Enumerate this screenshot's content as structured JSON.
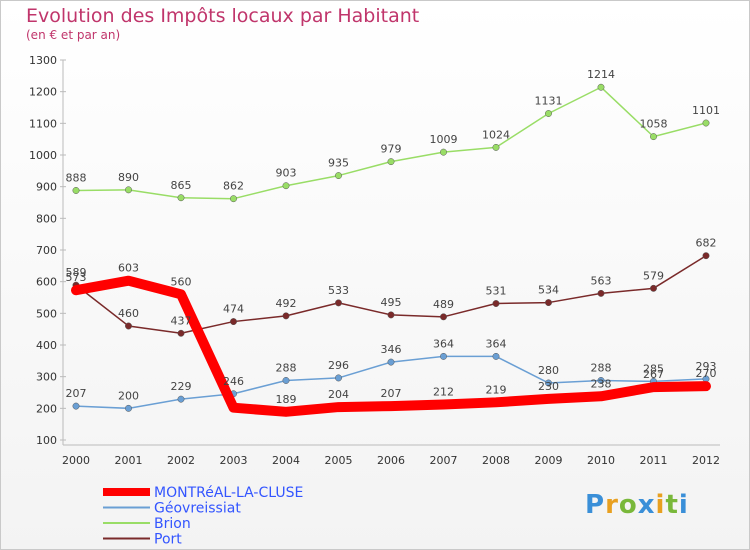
{
  "chart_data": {
    "type": "line",
    "title": "Evolution des Impôts locaux par Habitant",
    "subtitle": "(en € et par an)",
    "xlabel": "",
    "ylabel": "",
    "x": [
      "2000",
      "2001",
      "2002",
      "2003",
      "2004",
      "2005",
      "2006",
      "2007",
      "2008",
      "2009",
      "2010",
      "2011",
      "2012"
    ],
    "ylim": [
      100,
      1300
    ],
    "yticks": [
      100,
      200,
      300,
      400,
      500,
      600,
      700,
      800,
      900,
      1000,
      1100,
      1200,
      1300
    ],
    "grid": false,
    "legend_position": "bottom-left",
    "series": [
      {
        "name": "MONTRéAL-LA-CLUSE",
        "color": "#ff0000",
        "highlight": true,
        "values": [
          573,
          603,
          560,
          202,
          189,
          204,
          207,
          212,
          219,
          230,
          238,
          267,
          270
        ],
        "labels": [
          "573",
          "603",
          "560",
          "",
          "189",
          "204",
          "207",
          "212",
          "219",
          "230",
          "238",
          "267",
          "270"
        ]
      },
      {
        "name": "Géovreissiat",
        "color": "#6a9fd4",
        "values": [
          207,
          200,
          229,
          246,
          288,
          296,
          346,
          364,
          364,
          280,
          288,
          285,
          293
        ],
        "labels": [
          "207",
          "200",
          "229",
          "246",
          "288",
          "296",
          "346",
          "364",
          "364",
          "280",
          "288",
          "285",
          "293"
        ]
      },
      {
        "name": "Brion",
        "color": "#99dd66",
        "values": [
          888,
          890,
          865,
          862,
          903,
          935,
          979,
          1009,
          1024,
          1131,
          1214,
          1058,
          1101
        ],
        "labels": [
          "888",
          "890",
          "865",
          "862",
          "903",
          "935",
          "979",
          "1009",
          "1024",
          "1131",
          "1214",
          "1058",
          "1101"
        ]
      },
      {
        "name": "Port",
        "color": "#7a2a2a",
        "values": [
          589,
          460,
          437,
          474,
          492,
          533,
          495,
          489,
          531,
          534,
          563,
          579,
          682
        ],
        "labels": [
          "589",
          "460",
          "437",
          "474",
          "492",
          "533",
          "495",
          "489",
          "531",
          "534",
          "563",
          "579",
          "682"
        ]
      }
    ]
  },
  "legend": {
    "items": [
      {
        "label": "MONTRéAL-LA-CLUSE",
        "color": "#ff0000",
        "text_color": "#3355ff"
      },
      {
        "label": "Géovreissiat",
        "color": "#6a9fd4",
        "text_color": "#3355ff"
      },
      {
        "label": "Brion",
        "color": "#99dd66",
        "text_color": "#3355ff"
      },
      {
        "label": "Port",
        "color": "#7a2a2a",
        "text_color": "#3355ff"
      }
    ]
  },
  "logo": {
    "text": "Proxiti"
  }
}
